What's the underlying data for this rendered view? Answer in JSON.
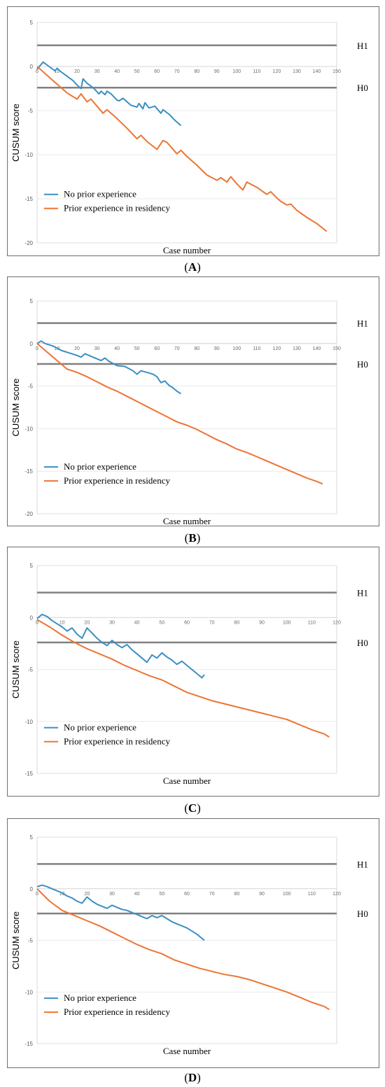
{
  "chart_data": [
    {
      "type": "line",
      "panel": "A",
      "caption_letter": "A",
      "ylabel": "CUSUM score",
      "xlabel": "Case number",
      "ylim": [
        -20,
        5
      ],
      "xlim": [
        0,
        150
      ],
      "yticks": [
        5,
        0,
        -5,
        -10,
        -15,
        -20
      ],
      "xticks": [
        0,
        10,
        20,
        30,
        40,
        50,
        60,
        70,
        80,
        90,
        100,
        110,
        120,
        130,
        140,
        150
      ],
      "h_lines": [
        {
          "label": "H1",
          "value": 2.4
        },
        {
          "label": "H0",
          "value": -2.4
        }
      ],
      "series": [
        {
          "name": "No prior experience",
          "color": "#3a8fc4",
          "x": [
            0,
            3,
            6,
            9,
            10,
            12,
            15,
            18,
            20,
            22,
            23,
            25,
            28,
            31,
            32,
            34,
            35,
            37,
            40,
            41,
            43,
            44,
            47,
            50,
            51,
            53,
            54,
            56,
            59,
            62,
            63,
            66,
            69,
            72
          ],
          "y": [
            -0.3,
            0.5,
            0,
            -0.5,
            -0.2,
            -0.6,
            -1.1,
            -1.6,
            -2.1,
            -2.5,
            -1.4,
            -1.9,
            -2.4,
            -3.1,
            -2.8,
            -3.2,
            -2.8,
            -3.1,
            -3.8,
            -3.9,
            -3.6,
            -3.8,
            -4.4,
            -4.6,
            -4.2,
            -4.8,
            -4.1,
            -4.7,
            -4.5,
            -5.3,
            -4.9,
            -5.4,
            -6.1,
            -6.7
          ]
        },
        {
          "name": "Prior experience in residency",
          "color": "#ed7433",
          "x": [
            0,
            5,
            10,
            15,
            20,
            22,
            25,
            27,
            30,
            33,
            35,
            40,
            45,
            50,
            52,
            55,
            60,
            63,
            65,
            70,
            72,
            75,
            80,
            85,
            90,
            92,
            95,
            97,
            100,
            103,
            105,
            110,
            115,
            117,
            120,
            122,
            125,
            127,
            130,
            135,
            140,
            145
          ],
          "y": [
            0,
            -1,
            -2,
            -3,
            -3.7,
            -3.1,
            -4,
            -3.7,
            -4.5,
            -5.3,
            -4.9,
            -5.9,
            -7,
            -8.2,
            -7.8,
            -8.5,
            -9.4,
            -8.4,
            -8.6,
            -9.9,
            -9.5,
            -10.2,
            -11.2,
            -12.3,
            -12.9,
            -12.6,
            -13.1,
            -12.5,
            -13.3,
            -14,
            -13.1,
            -13.7,
            -14.5,
            -14.2,
            -14.9,
            -15.3,
            -15.7,
            -15.6,
            -16.3,
            -17.1,
            -17.8,
            -18.7
          ]
        }
      ]
    },
    {
      "type": "line",
      "panel": "B",
      "caption_letter": "B",
      "ylabel": "CUSUM score",
      "xlabel": "Case number",
      "ylim": [
        -20,
        5
      ],
      "xlim": [
        0,
        150
      ],
      "yticks": [
        5,
        0,
        -5,
        -10,
        -15,
        -20
      ],
      "xticks": [
        0,
        10,
        20,
        30,
        40,
        50,
        60,
        70,
        80,
        90,
        100,
        110,
        120,
        130,
        140,
        150
      ],
      "h_lines": [
        {
          "label": "H1",
          "value": 2.4
        },
        {
          "label": "H0",
          "value": -2.4
        }
      ],
      "series": [
        {
          "name": "No prior experience",
          "color": "#3a8fc4",
          "x": [
            0,
            2,
            4,
            8,
            12,
            16,
            20,
            22,
            24,
            28,
            32,
            34,
            36,
            40,
            44,
            48,
            50,
            52,
            55,
            58,
            60,
            62,
            64,
            66,
            68,
            70,
            72
          ],
          "y": [
            0,
            0.3,
            0,
            -0.3,
            -0.8,
            -1.1,
            -1.4,
            -1.6,
            -1.2,
            -1.6,
            -2.0,
            -1.7,
            -2.1,
            -2.6,
            -2.7,
            -3.2,
            -3.6,
            -3.2,
            -3.4,
            -3.6,
            -3.9,
            -4.6,
            -4.4,
            -4.9,
            -5.2,
            -5.6,
            -5.9
          ]
        },
        {
          "name": "Prior experience in residency",
          "color": "#ed7433",
          "x": [
            0,
            5,
            10,
            15,
            20,
            25,
            30,
            35,
            40,
            45,
            50,
            55,
            60,
            65,
            70,
            75,
            80,
            85,
            90,
            95,
            100,
            105,
            110,
            115,
            120,
            125,
            130,
            135,
            140,
            143
          ],
          "y": [
            0,
            -1,
            -2,
            -3,
            -3.4,
            -3.9,
            -4.5,
            -5.1,
            -5.6,
            -6.2,
            -6.8,
            -7.4,
            -8.0,
            -8.6,
            -9.2,
            -9.6,
            -10.1,
            -10.7,
            -11.3,
            -11.8,
            -12.4,
            -12.8,
            -13.3,
            -13.8,
            -14.3,
            -14.8,
            -15.3,
            -15.8,
            -16.2,
            -16.5
          ]
        }
      ]
    },
    {
      "type": "line",
      "panel": "C",
      "caption_letter": "C",
      "ylabel": "CUSUM score",
      "xlabel": "Case number",
      "ylim": [
        -15,
        5
      ],
      "xlim": [
        0,
        120
      ],
      "yticks": [
        5,
        0,
        -5,
        -10,
        -15
      ],
      "xticks": [
        0,
        10,
        20,
        30,
        40,
        50,
        60,
        70,
        80,
        90,
        100,
        110,
        120
      ],
      "h_lines": [
        {
          "label": "H1",
          "value": 2.4
        },
        {
          "label": "H0",
          "value": -2.4
        }
      ],
      "series": [
        {
          "name": "No prior experience",
          "color": "#3a8fc4",
          "x": [
            0,
            2,
            4,
            6,
            8,
            10,
            12,
            14,
            16,
            18,
            20,
            22,
            24,
            26,
            28,
            30,
            32,
            34,
            36,
            38,
            40,
            42,
            44,
            46,
            48,
            50,
            52,
            54,
            56,
            58,
            60,
            62,
            64,
            66,
            67
          ],
          "y": [
            -0.1,
            0.3,
            0.1,
            -0.3,
            -0.6,
            -0.9,
            -1.3,
            -1.0,
            -1.6,
            -2.0,
            -1.0,
            -1.5,
            -2.0,
            -2.4,
            -2.7,
            -2.2,
            -2.6,
            -2.9,
            -2.6,
            -3.1,
            -3.5,
            -3.9,
            -4.3,
            -3.6,
            -3.9,
            -3.4,
            -3.8,
            -4.1,
            -4.5,
            -4.2,
            -4.6,
            -5.0,
            -5.4,
            -5.8,
            -5.5
          ]
        },
        {
          "name": "Prior experience in residency",
          "color": "#ed7433",
          "x": [
            0,
            5,
            10,
            15,
            20,
            25,
            30,
            35,
            40,
            45,
            50,
            55,
            60,
            65,
            70,
            75,
            80,
            85,
            90,
            95,
            100,
            105,
            110,
            115,
            117
          ],
          "y": [
            -0.2,
            -0.9,
            -1.7,
            -2.4,
            -3.0,
            -3.5,
            -4.0,
            -4.6,
            -5.1,
            -5.6,
            -6.0,
            -6.6,
            -7.2,
            -7.6,
            -8.0,
            -8.3,
            -8.6,
            -8.9,
            -9.2,
            -9.5,
            -9.8,
            -10.3,
            -10.8,
            -11.2,
            -11.5
          ]
        }
      ]
    },
    {
      "type": "line",
      "panel": "D",
      "caption_letter": "D",
      "ylabel": "CUSUM score",
      "xlabel": "Case number",
      "ylim": [
        -15,
        5
      ],
      "xlim": [
        0,
        120
      ],
      "yticks": [
        5,
        0,
        -5,
        -10,
        -15
      ],
      "xticks": [
        0,
        10,
        20,
        30,
        40,
        50,
        60,
        70,
        80,
        90,
        100,
        110,
        120
      ],
      "h_lines": [
        {
          "label": "H1",
          "value": 2.4
        },
        {
          "label": "H0",
          "value": -2.4
        }
      ],
      "series": [
        {
          "name": "No prior experience",
          "color": "#3a8fc4",
          "x": [
            0,
            2,
            4,
            6,
            8,
            10,
            12,
            14,
            16,
            18,
            20,
            22,
            24,
            26,
            28,
            30,
            32,
            34,
            36,
            38,
            40,
            42,
            44,
            46,
            48,
            50,
            52,
            54,
            56,
            58,
            60,
            62,
            64,
            66,
            67
          ],
          "y": [
            0.2,
            0.35,
            0.2,
            0.0,
            -0.2,
            -0.4,
            -0.7,
            -0.9,
            -1.2,
            -1.4,
            -0.8,
            -1.2,
            -1.5,
            -1.7,
            -1.9,
            -1.6,
            -1.8,
            -2.0,
            -2.1,
            -2.3,
            -2.5,
            -2.7,
            -2.9,
            -2.6,
            -2.8,
            -2.6,
            -2.9,
            -3.2,
            -3.4,
            -3.6,
            -3.8,
            -4.1,
            -4.4,
            -4.8,
            -5.0
          ]
        },
        {
          "name": "Prior experience in residency",
          "color": "#ed7433",
          "x": [
            0,
            5,
            10,
            15,
            20,
            25,
            30,
            35,
            40,
            45,
            50,
            55,
            60,
            65,
            70,
            75,
            80,
            85,
            90,
            95,
            100,
            105,
            110,
            115,
            117
          ],
          "y": [
            0,
            -1.2,
            -2.1,
            -2.6,
            -3.1,
            -3.6,
            -4.2,
            -4.8,
            -5.4,
            -5.9,
            -6.3,
            -6.9,
            -7.3,
            -7.7,
            -8.0,
            -8.3,
            -8.5,
            -8.8,
            -9.2,
            -9.6,
            -10.0,
            -10.5,
            -11.0,
            -11.4,
            -11.7
          ]
        }
      ]
    }
  ]
}
